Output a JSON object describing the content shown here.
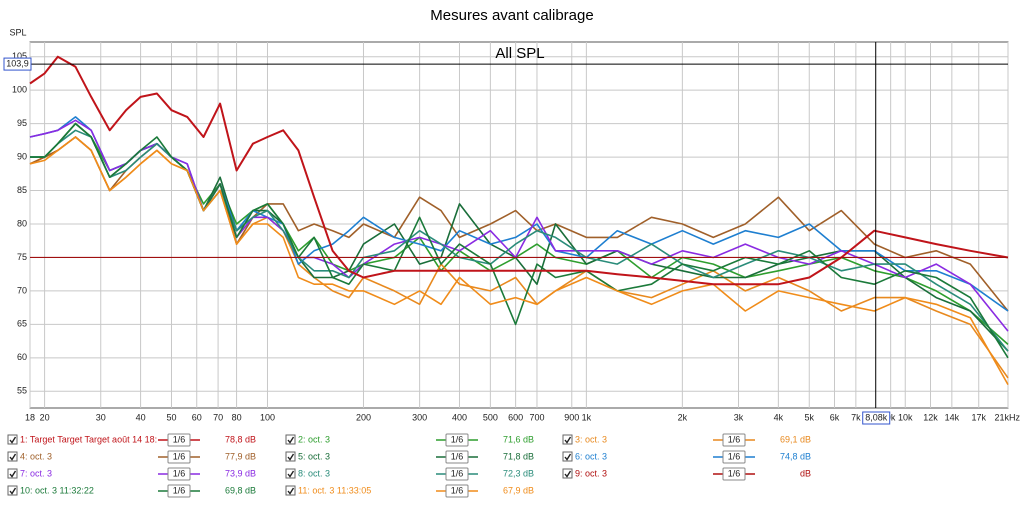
{
  "chart_data": {
    "type": "line",
    "title": "Mesures avant calibrage",
    "plot_title": "All SPL",
    "ylabel": "SPL",
    "xscale": "log",
    "grid": true,
    "x": [
      18,
      20,
      22,
      25,
      28,
      32,
      36,
      40,
      45,
      50,
      56,
      63,
      71,
      80,
      90,
      100,
      112,
      125,
      140,
      160,
      180,
      200,
      250,
      300,
      350,
      400,
      500,
      600,
      700,
      800,
      1000,
      1250,
      1600,
      2000,
      2500,
      3150,
      4000,
      5000,
      6300,
      8000,
      10000,
      12500,
      16000,
      21000
    ],
    "xlim": [
      18,
      21000
    ],
    "ylim": [
      52.5,
      107.2
    ],
    "yticks": [
      55,
      60,
      65,
      70,
      75,
      80,
      85,
      90,
      95,
      100,
      105
    ],
    "xticks": [
      18,
      20,
      30,
      40,
      50,
      60,
      70,
      80,
      100,
      200,
      300,
      400,
      500,
      600,
      700,
      {
        "value": 900,
        "label": "900"
      },
      {
        "value": 1000,
        "label": "1k"
      },
      {
        "value": 2000,
        "label": "2k"
      },
      {
        "value": 3000,
        "label": "3k"
      },
      {
        "value": 4000,
        "label": "4k"
      },
      {
        "value": 5000,
        "label": "5k"
      },
      {
        "value": 6000,
        "label": "6k"
      },
      {
        "value": 7000,
        "label": "7k"
      },
      {
        "value": 9000,
        "label": "9k"
      },
      {
        "value": 10000,
        "label": "10k"
      },
      {
        "value": 12000,
        "label": "12k"
      },
      {
        "value": 14000,
        "label": "14k"
      },
      {
        "value": 17000,
        "label": "17k"
      },
      {
        "value": 21000,
        "label": "21kHz"
      }
    ],
    "target_level": 75,
    "target_color": "#a01010",
    "cursor": {
      "x": {
        "value": 8080,
        "label": "8,08k"
      },
      "y": {
        "value": 103.9,
        "label": "103,9"
      }
    },
    "smoothing": "1/6",
    "series": [
      {
        "name": "1: Target Target Target août 14 18:",
        "color": "#c0141a",
        "readout": "78,8 dB",
        "values": [
          101,
          102.5,
          105,
          103.5,
          99,
          94,
          97,
          99,
          99.5,
          97,
          96,
          93,
          98,
          88,
          92,
          93,
          94,
          91,
          84,
          76,
          73,
          72,
          73,
          73,
          73,
          73,
          73,
          73,
          73,
          73,
          73,
          72.5,
          72,
          71.5,
          71,
          71,
          71,
          72,
          75,
          79,
          78,
          77,
          76,
          75
        ]
      },
      {
        "name": "2: oct. 3",
        "color": "#2e9e2e",
        "readout": "71,6 dB",
        "values": [
          90,
          90,
          92,
          95,
          93,
          88,
          89,
          91,
          92,
          90,
          88,
          83,
          86,
          80,
          82,
          83,
          80,
          76,
          78,
          74,
          73,
          74,
          75,
          78,
          73,
          76,
          73,
          75,
          77,
          75,
          74,
          76,
          72,
          75,
          74,
          72,
          73,
          74,
          75,
          73,
          72,
          70,
          67,
          62
        ]
      },
      {
        "name": "3: oct. 3",
        "color": "#e8891e",
        "readout": "69,1 dB",
        "values": [
          89,
          90,
          91,
          93,
          91,
          85,
          87,
          89,
          91,
          89,
          88,
          82,
          85,
          77,
          80,
          81,
          79,
          74,
          72,
          70,
          69,
          72,
          70,
          68,
          74,
          71,
          70,
          72,
          68,
          70,
          73,
          70,
          69,
          71,
          73,
          70,
          72,
          70,
          67,
          69,
          69,
          67,
          65,
          57
        ]
      },
      {
        "name": "4: oct. 3",
        "color": "#a0602a",
        "readout": "77,9 dB",
        "values": [
          89,
          90,
          91,
          93,
          91,
          85,
          88,
          90,
          92,
          90,
          88,
          82,
          86,
          77,
          81,
          83,
          83,
          79,
          80,
          79,
          78,
          80,
          78,
          84,
          82,
          78,
          80,
          82,
          79,
          80,
          78,
          78,
          81,
          80,
          78,
          80,
          84,
          79,
          82,
          77,
          75,
          76,
          74,
          67
        ]
      },
      {
        "name": "5: oct. 3",
        "color": "#1a6e3a",
        "readout": "71,8 dB",
        "values": [
          90,
          90,
          92,
          95,
          93,
          87,
          89,
          91,
          92,
          90,
          88,
          82,
          87,
          79,
          82,
          82,
          80,
          75,
          72,
          72,
          73,
          77,
          80,
          74,
          75,
          83,
          77,
          75,
          71,
          80,
          74,
          76,
          74,
          73,
          72,
          72,
          74,
          75,
          76,
          76,
          72,
          69,
          67,
          61
        ]
      },
      {
        "name": "6: oct. 3",
        "color": "#1e7fd0",
        "readout": "74,8 dB",
        "values": [
          93,
          93.5,
          94,
          96,
          94,
          88,
          89,
          91,
          92,
          90,
          89,
          82,
          86,
          79,
          82,
          81,
          80,
          74,
          76,
          77,
          79,
          81,
          78,
          77,
          76,
          79,
          77,
          78,
          80,
          76,
          75,
          79,
          77,
          79,
          77,
          79,
          78,
          80,
          76,
          76,
          73,
          73,
          71,
          67
        ]
      },
      {
        "name": "7: oct. 3",
        "color": "#8a2be2",
        "readout": "73,9 dB",
        "values": [
          93,
          93.5,
          94,
          95.5,
          94,
          88,
          89,
          91,
          92,
          90,
          89,
          82,
          86,
          78,
          81,
          81,
          79,
          75,
          75,
          74,
          72,
          74,
          77,
          78,
          77,
          76,
          79,
          75,
          81,
          76,
          76,
          76,
          74,
          76,
          75,
          77,
          75,
          74,
          76,
          74,
          72,
          74,
          71,
          64
        ]
      },
      {
        "name": "8: oct. 3",
        "color": "#2a8c7a",
        "readout": "72,3 dB",
        "values": [
          90,
          90,
          92,
          94,
          93,
          87,
          88,
          90,
          92,
          90,
          88,
          82,
          85,
          79,
          81,
          82,
          79,
          75,
          73,
          73,
          72,
          75,
          76,
          79,
          77,
          75,
          74,
          77,
          79,
          78,
          75,
          74,
          77,
          74,
          72,
          74,
          76,
          75,
          73,
          74,
          74,
          71,
          68,
          61
        ]
      },
      {
        "name": "9: oct. 3",
        "color": "#b01010",
        "readout": "dB",
        "values": [
          null,
          null,
          null,
          null,
          null,
          null,
          null,
          null,
          null,
          null,
          null,
          null,
          null,
          null,
          null,
          null,
          null,
          null,
          null,
          null,
          null,
          null,
          null,
          null,
          null,
          null,
          null,
          null,
          null,
          null,
          null,
          null,
          null,
          null,
          null,
          null,
          null,
          null,
          null,
          null,
          null,
          null,
          null,
          null
        ]
      },
      {
        "name": "10: oct. 3 11:32:22",
        "color": "#1b7a3a",
        "readout": "69,8 dB",
        "values": [
          90,
          90,
          92,
          95,
          93,
          87,
          89,
          91,
          93,
          90,
          88,
          82,
          86,
          78,
          82,
          83,
          80,
          75,
          78,
          72,
          71,
          74,
          73,
          81,
          74,
          77,
          74,
          65,
          74,
          72,
          73,
          70,
          71,
          74,
          73,
          75,
          74,
          76,
          72,
          71,
          73,
          72,
          69,
          60
        ]
      },
      {
        "name": "11: oct. 3 11:33:05",
        "color": "#f08c1a",
        "readout": "67,9 dB",
        "values": [
          89,
          89.5,
          91,
          93,
          91,
          85,
          87,
          89,
          91,
          89,
          88,
          82,
          85,
          77,
          80,
          80,
          78,
          72,
          71,
          71,
          70,
          70,
          68,
          70,
          68,
          72,
          68,
          69,
          68,
          70,
          72,
          70,
          68,
          70,
          71,
          67,
          70,
          69,
          68,
          67,
          69,
          68,
          66,
          56
        ]
      }
    ]
  }
}
